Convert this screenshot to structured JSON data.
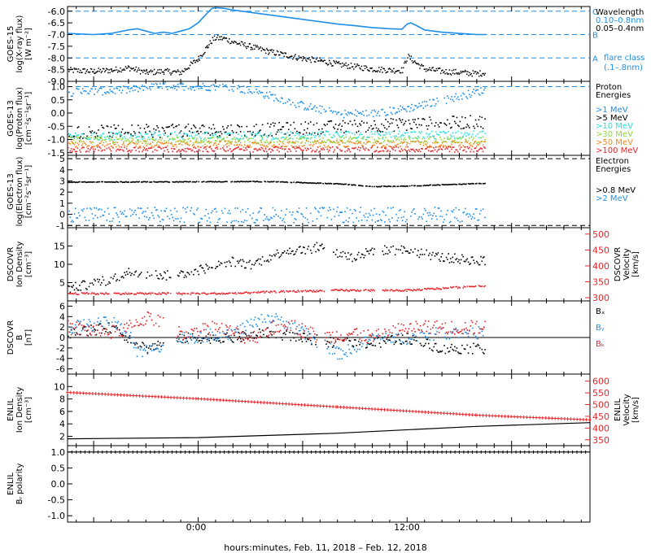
{
  "xaxis": {
    "title": "hours:minutes, Feb. 11, 2018 – Feb. 12, 2018",
    "tick_labels": [
      "0:00",
      "12:00"
    ],
    "range_hours": [
      -7.5,
      22.5
    ],
    "major_tick_every_hours": 6,
    "minor_tick_every_hours": 1
  },
  "colors": {
    "black": "#000000",
    "blue": "#1f8fe8",
    "cyan": "#26e0e0",
    "green": "#8ed638",
    "yellow": "#e8c51c",
    "orange": "#f08a1c",
    "red": "#e8242a"
  },
  "chart_data": [
    {
      "type": "line",
      "ylabel": [
        "GOES-15",
        "log(X-ray flux)",
        "[W m⁻²]"
      ],
      "yticks": [
        "-6.0",
        "-6.5",
        "-7.0",
        "-7.5",
        "-8.0",
        "-8.5",
        "-9.0"
      ],
      "ylim": [
        -9.0,
        -5.8
      ],
      "right_labels": [
        {
          "text": "C",
          "y": -6.0
        },
        {
          "text": "B",
          "y": -7.0
        },
        {
          "text": "A",
          "y": -8.0
        }
      ],
      "reference_lines": [
        -6.0,
        -7.0,
        -8.0
      ],
      "legend": [
        "Wavelength",
        "0.10–0.8nm",
        "0.05–0.4nm",
        "flare class",
        "(.1–.8nm)"
      ],
      "series": [
        {
          "name": "0.10–0.8nm",
          "color": "blue",
          "style": "line",
          "x": [
            -7.5,
            -6,
            -5,
            -4,
            -3.5,
            -3,
            -2.5,
            -2,
            -1.5,
            -1,
            -0.5,
            0,
            0.5,
            0.8,
            1,
            1.5,
            2,
            3,
            4,
            5,
            6,
            7,
            8,
            9,
            10,
            11,
            11.7,
            12,
            12.2,
            12.5,
            13,
            14,
            15,
            16,
            16.5
          ],
          "y": [
            -6.95,
            -7.0,
            -6.95,
            -6.8,
            -6.75,
            -6.85,
            -6.95,
            -6.9,
            -6.95,
            -6.85,
            -6.75,
            -6.5,
            -6.1,
            -5.88,
            -5.85,
            -5.88,
            -5.95,
            -6.05,
            -6.15,
            -6.25,
            -6.35,
            -6.45,
            -6.55,
            -6.62,
            -6.7,
            -6.75,
            -6.77,
            -6.55,
            -6.5,
            -6.6,
            -6.8,
            -6.9,
            -6.95,
            -7.0,
            -7.0
          ]
        },
        {
          "name": "0.05–0.4nm",
          "color": "black",
          "style": "points",
          "x": [
            -7.5,
            -6,
            -5,
            -4,
            -3,
            -2,
            -1,
            -0.5,
            0,
            0.5,
            0.8,
            1,
            1.5,
            2,
            3,
            4,
            5,
            6,
            7,
            8,
            9,
            10,
            11,
            11.7,
            12,
            12.5,
            13,
            14,
            15,
            16,
            16.5
          ],
          "y": [
            -8.5,
            -8.55,
            -8.5,
            -8.4,
            -8.6,
            -8.55,
            -8.6,
            -8.3,
            -8.0,
            -7.5,
            -7.2,
            -7.12,
            -7.15,
            -7.3,
            -7.5,
            -7.7,
            -7.85,
            -8.0,
            -8.1,
            -8.25,
            -8.35,
            -8.45,
            -8.5,
            -8.5,
            -7.9,
            -8.2,
            -8.45,
            -8.55,
            -8.6,
            -8.65,
            -8.6
          ]
        }
      ]
    },
    {
      "type": "scatter",
      "ylabel": [
        "GOES-13",
        "log(Proton flux)",
        "[cm⁻²s⁻¹sr⁻¹]"
      ],
      "yticks": [
        "1.0",
        "0.5",
        "0.0",
        "-0.5",
        "-1.0",
        "-1.5"
      ],
      "ylim": [
        -1.6,
        1.2
      ],
      "reference_lines": [
        1.0
      ],
      "legend": [
        "Proton",
        "Energies",
        ">1 MeV",
        ">5 MeV",
        ">10 MeV",
        ">30 MeV",
        ">50 MeV",
        ">100 MeV"
      ],
      "series": [
        {
          "name": ">1 MeV",
          "color": "blue",
          "base": [
            [
              -7.5,
              0.8
            ],
            [
              -4,
              0.9
            ],
            [
              -2,
              1.05
            ],
            [
              2,
              1.0
            ],
            [
              4,
              0.7
            ],
            [
              6,
              0.3
            ],
            [
              8,
              0.0
            ],
            [
              10,
              0.0
            ],
            [
              12,
              0.2
            ],
            [
              14,
              0.5
            ],
            [
              16.5,
              0.9
            ]
          ],
          "spread": 0.15
        },
        {
          "name": ">5 MeV",
          "color": "black",
          "base": [
            [
              -7.5,
              -0.7
            ],
            [
              4,
              -0.6
            ],
            [
              8,
              -0.5
            ],
            [
              12,
              -0.4
            ],
            [
              16.5,
              -0.3
            ]
          ],
          "spread": 0.25
        },
        {
          "name": ">10 MeV",
          "color": "cyan",
          "base": [
            [
              -7.5,
              -0.85
            ],
            [
              16.5,
              -0.8
            ]
          ],
          "spread": 0.15
        },
        {
          "name": ">30 MeV",
          "color": "green",
          "base": [
            [
              -7.5,
              -1.0
            ],
            [
              16.5,
              -1.0
            ]
          ],
          "spread": 0.12
        },
        {
          "name": ">50 MeV",
          "color": "orange",
          "base": [
            [
              -7.5,
              -1.15
            ],
            [
              16.5,
              -1.15
            ]
          ],
          "spread": 0.12
        },
        {
          "name": ">100 MeV",
          "color": "red",
          "base": [
            [
              -7.5,
              -1.35
            ],
            [
              16.5,
              -1.35
            ]
          ],
          "spread": 0.1
        }
      ]
    },
    {
      "type": "scatter",
      "ylabel": [
        "GOES-13",
        "log(Electron flux)",
        "[cm⁻²s⁻¹sr⁻¹]"
      ],
      "yticks": [
        "5",
        "4",
        "3",
        "2",
        "1",
        "0",
        "-1"
      ],
      "ylim": [
        -1.2,
        5.3
      ],
      "reference_lines": [
        5.0,
        -1.0
      ],
      "legend": [
        "Electron",
        "Energies",
        ">0.8 MeV",
        ">2 MeV"
      ],
      "series": [
        {
          "name": ">0.8 MeV",
          "color": "black",
          "base": [
            [
              -7.5,
              2.95
            ],
            [
              4,
              3.0
            ],
            [
              8,
              2.8
            ],
            [
              10,
              2.55
            ],
            [
              12,
              2.6
            ],
            [
              16.5,
              2.85
            ]
          ],
          "spread": 0.03
        },
        {
          "name": ">2 MeV",
          "color": "blue",
          "base": [
            [
              -7.5,
              0.0
            ],
            [
              16.5,
              0.0
            ]
          ],
          "spread": 0.7
        }
      ]
    },
    {
      "type": "scatter",
      "ylabel": [
        "DSCOVR",
        "Ion Density",
        "[cm⁻³]"
      ],
      "yticks": [
        "15",
        "10",
        "5"
      ],
      "ylim": [
        0,
        20
      ],
      "right_ylabel": [
        "DSCOVR",
        "Velocity",
        "[km/s]"
      ],
      "right_yticks": [
        "500",
        "450",
        "400",
        "350",
        "300"
      ],
      "right_ylim": [
        290,
        520
      ],
      "series": [
        {
          "name": "Ion Density",
          "color": "black",
          "axis": "left",
          "base": [
            [
              -7.5,
              3.5
            ],
            [
              -5,
              6
            ],
            [
              -4,
              8
            ],
            [
              -3,
              7.5
            ],
            [
              -1.5,
              7
            ],
            [
              -0.5,
              8
            ],
            [
              2,
              11
            ],
            [
              3,
              10
            ],
            [
              4,
              12
            ],
            [
              5,
              14
            ],
            [
              6,
              14
            ],
            [
              7,
              15
            ],
            [
              8,
              13
            ],
            [
              9,
              12
            ],
            [
              10,
              14
            ],
            [
              12,
              14
            ],
            [
              14,
              12
            ],
            [
              16.5,
              11
            ]
          ],
          "spread": 1.3,
          "gaps": [
            [
              -1.6,
              -1.3
            ],
            [
              7.2,
              7.6
            ],
            [
              10.1,
              10.5
            ]
          ]
        },
        {
          "name": "Velocity",
          "color": "red",
          "axis": "right",
          "base": [
            [
              -7.5,
              315
            ],
            [
              2,
              315
            ],
            [
              4,
              320
            ],
            [
              8,
              325
            ],
            [
              12,
              325
            ],
            [
              16.5,
              340
            ]
          ],
          "spread": 3,
          "gaps": [
            [
              -1.6,
              -1.3
            ],
            [
              7.2,
              7.6
            ],
            [
              10.1,
              10.5
            ]
          ]
        }
      ]
    },
    {
      "type": "scatter",
      "ylabel": [
        "DSCOVR",
        "B",
        "[nT]"
      ],
      "yticks": [
        "6",
        "4",
        "2",
        "0",
        "-2",
        "-4",
        "-6"
      ],
      "ylim": [
        -7,
        7
      ],
      "reference_lines": [
        0
      ],
      "legend": [
        "Bₓ",
        "Bᵧ",
        "Bₖ"
      ],
      "series": [
        {
          "name": "Bₓ",
          "color": "black",
          "base": [
            [
              -7.5,
              1
            ],
            [
              -5,
              2
            ],
            [
              -4,
              0
            ],
            [
              -3,
              -2
            ],
            [
              -1,
              0
            ],
            [
              2,
              0
            ],
            [
              4,
              1
            ],
            [
              6,
              0
            ],
            [
              8,
              -1
            ],
            [
              10,
              -1
            ],
            [
              12,
              0
            ],
            [
              14,
              -2
            ],
            [
              16.5,
              -2
            ]
          ],
          "spread": 1.0,
          "gaps": [
            [
              -2.0,
              -1.3
            ],
            [
              6.8,
              7.2
            ]
          ]
        },
        {
          "name": "Bᵧ",
          "color": "blue",
          "base": [
            [
              -7.5,
              2
            ],
            [
              -5,
              3
            ],
            [
              -4,
              1
            ],
            [
              -3.5,
              -3
            ],
            [
              -1,
              0
            ],
            [
              2,
              1
            ],
            [
              4,
              4
            ],
            [
              5,
              3
            ],
            [
              6,
              1
            ],
            [
              8,
              -3
            ],
            [
              9,
              -2
            ],
            [
              10,
              0
            ],
            [
              12,
              0
            ],
            [
              14,
              1
            ],
            [
              16.5,
              1
            ]
          ],
          "spread": 1.2,
          "gaps": [
            [
              -2.0,
              -1.3
            ],
            [
              6.8,
              7.2
            ]
          ]
        },
        {
          "name": "Bₖ",
          "color": "red",
          "base": [
            [
              -7.5,
              2
            ],
            [
              -5,
              1
            ],
            [
              -4,
              2
            ],
            [
              -3,
              4
            ],
            [
              -1,
              1
            ],
            [
              1,
              2
            ],
            [
              3,
              0
            ],
            [
              5,
              3
            ],
            [
              7,
              0
            ],
            [
              9,
              1
            ],
            [
              10,
              0
            ],
            [
              12,
              2
            ],
            [
              14,
              2
            ],
            [
              16.5,
              2
            ]
          ],
          "spread": 1.4,
          "gaps": [
            [
              -2.0,
              -1.3
            ],
            [
              6.8,
              7.2
            ]
          ]
        }
      ]
    },
    {
      "type": "line",
      "ylabel": [
        "ENLIL",
        "Ion Density",
        "[cm⁻³]"
      ],
      "yticks": [
        "10",
        "8",
        "6",
        "4",
        "2"
      ],
      "ylim": [
        0.5,
        12
      ],
      "right_ylabel": [
        "ENLIL",
        "Velocity",
        "[km/s]"
      ],
      "right_yticks": [
        "600",
        "550",
        "500",
        "450",
        "400",
        "350"
      ],
      "right_ylim": [
        325,
        630
      ],
      "series": [
        {
          "name": "Ion Density",
          "color": "black",
          "axis": "left",
          "x": [
            -7.5,
            0,
            8,
            16,
            22.5
          ],
          "y": [
            1.6,
            1.8,
            2.5,
            3.6,
            4.2
          ]
        },
        {
          "name": "Velocity",
          "color": "red",
          "axis": "right",
          "x": [
            -7.5,
            0,
            8,
            16,
            22.5
          ],
          "y": [
            552,
            525,
            490,
            455,
            435
          ]
        }
      ]
    },
    {
      "type": "line",
      "ylabel": [
        "ENLIL",
        "Bᵣ polarity"
      ],
      "yticks": [
        "1.0",
        "0.5",
        "0.0",
        "-0.5",
        "-1.0"
      ],
      "ylim": [
        -1.2,
        1.2
      ],
      "series": [
        {
          "name": "Bᵣ polarity",
          "color": "black",
          "axis": "left",
          "x": [
            -7.5,
            22.5
          ],
          "y": [
            1.0,
            1.0
          ]
        }
      ]
    }
  ]
}
